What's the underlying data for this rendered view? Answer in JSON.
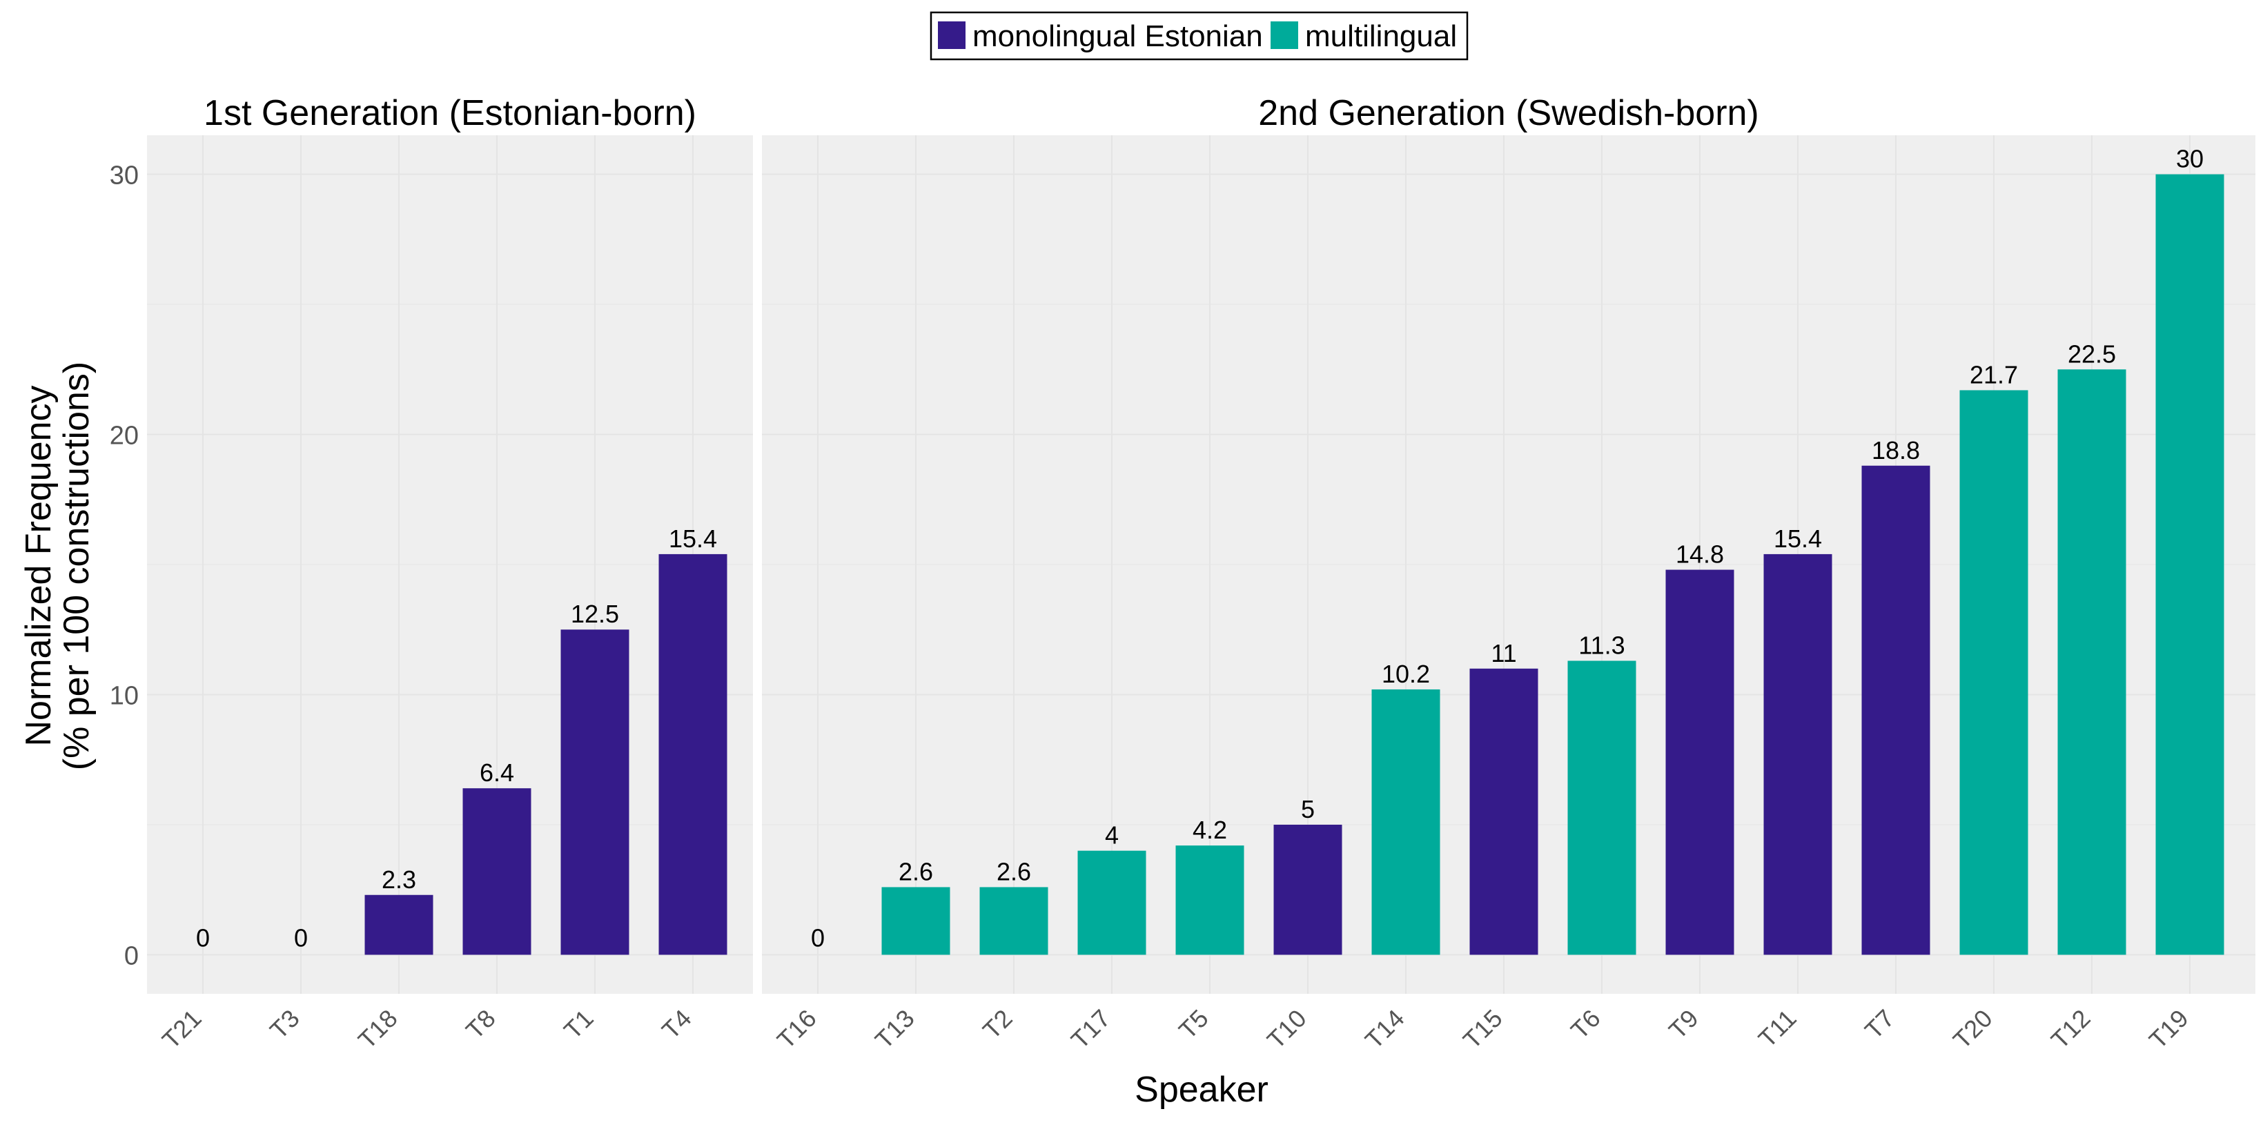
{
  "chart_data": {
    "type": "bar",
    "title": "",
    "xlabel": "Speaker",
    "ylabel_lines": [
      "Normalized Frequency",
      "(% per 100 constructions)"
    ],
    "ylim": [
      -1.5,
      31.5
    ],
    "yticks": [
      0,
      10,
      20,
      30
    ],
    "grid": true,
    "legend_position": "top-center",
    "legend": [
      {
        "key": "mono",
        "label": "monolingual Estonian",
        "color": "#351b8a"
      },
      {
        "key": "multi",
        "label": "multilingual",
        "color": "#00ab9a"
      }
    ],
    "panels": [
      {
        "title": "1st Generation (Estonian-born)",
        "categories": [
          "T21",
          "T3",
          "T18",
          "T8",
          "T1",
          "T4"
        ],
        "values": [
          0,
          0,
          2.3,
          6.4,
          12.5,
          15.4
        ],
        "groups": [
          "mono",
          "mono",
          "mono",
          "mono",
          "mono",
          "mono"
        ]
      },
      {
        "title": "2nd Generation (Swedish-born)",
        "categories": [
          "T16",
          "T13",
          "T2",
          "T17",
          "T5",
          "T10",
          "T14",
          "T15",
          "T6",
          "T9",
          "T11",
          "T7",
          "T20",
          "T12",
          "T19"
        ],
        "values": [
          0,
          2.6,
          2.6,
          4,
          4.2,
          5,
          10.2,
          11,
          11.3,
          14.8,
          15.4,
          18.8,
          21.7,
          22.5,
          30
        ],
        "groups": [
          "mono",
          "multi",
          "multi",
          "multi",
          "multi",
          "mono",
          "multi",
          "mono",
          "multi",
          "mono",
          "mono",
          "mono",
          "multi",
          "multi",
          "multi"
        ]
      }
    ]
  }
}
